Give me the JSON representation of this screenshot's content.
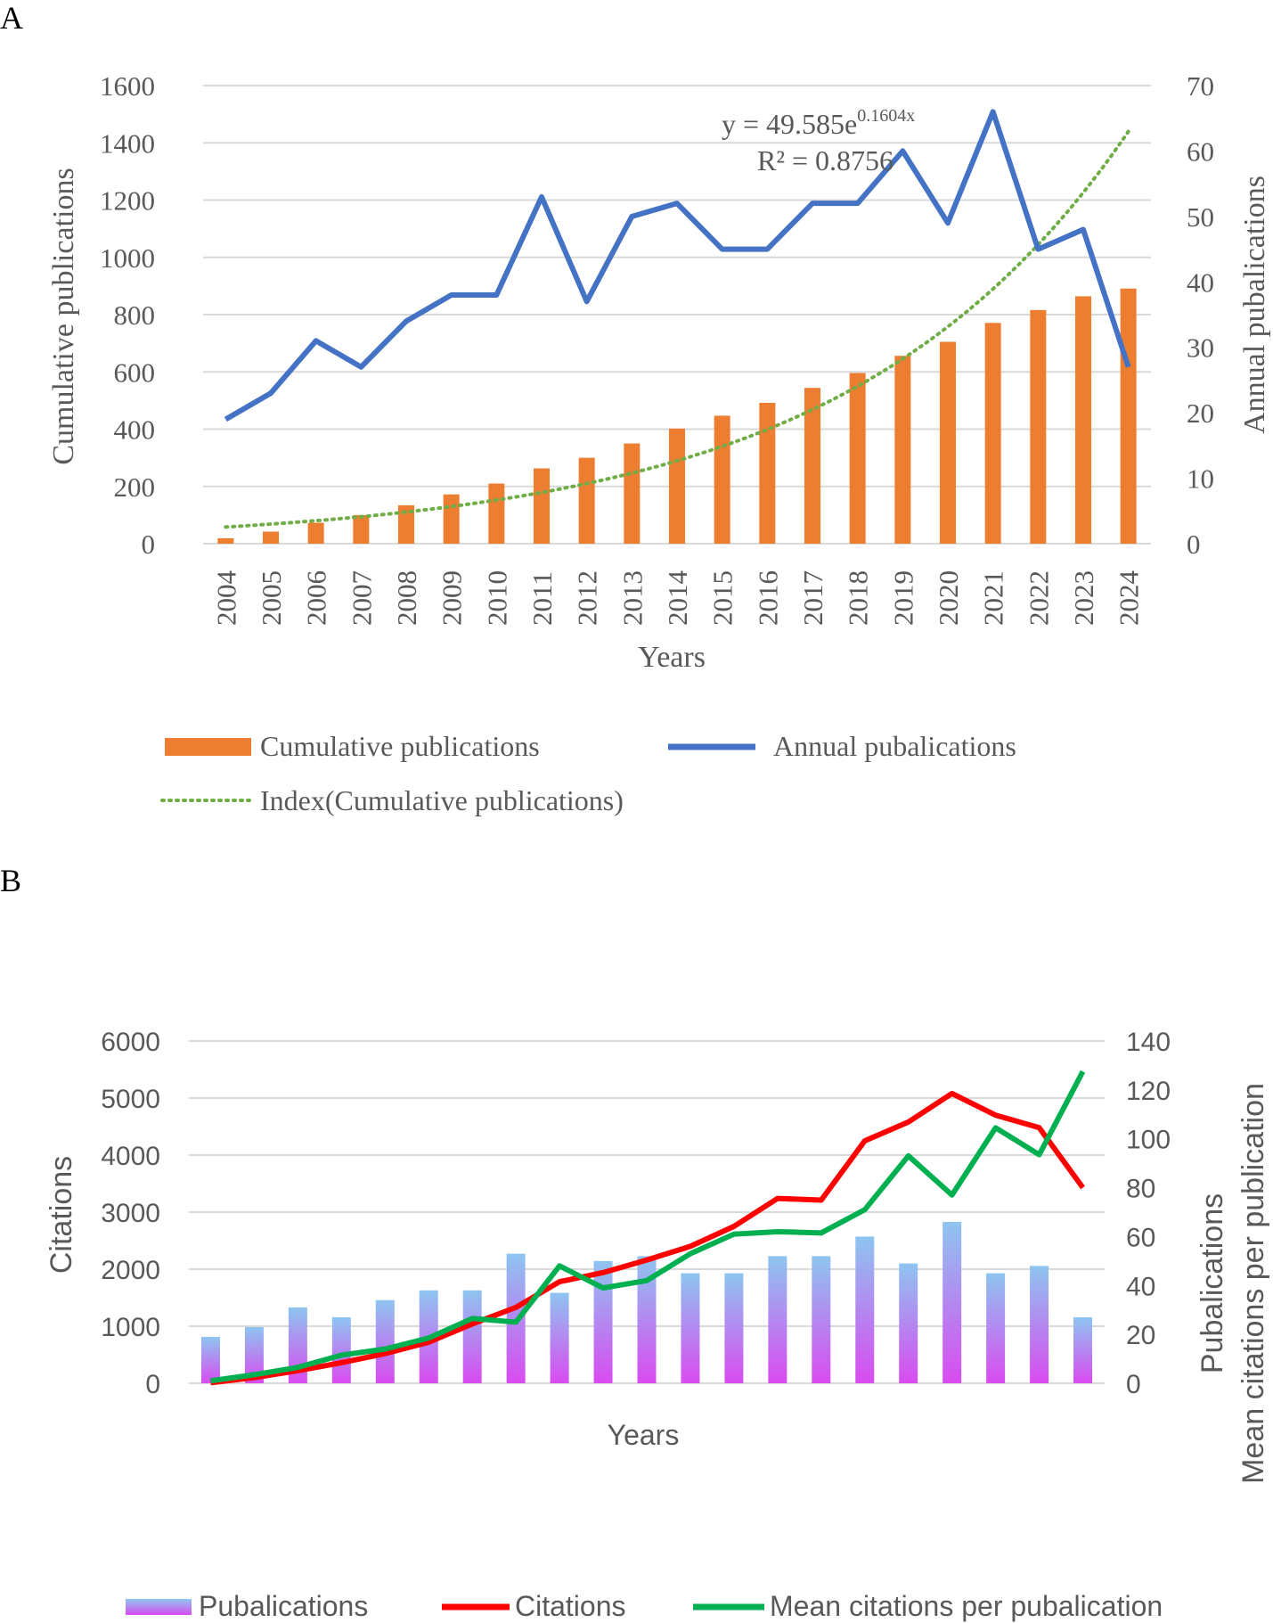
{
  "colors": {
    "cumulative_bar": "#ED7D31",
    "annual_line": "#4472C4",
    "trend": "#70AD47",
    "citations_line": "#FF0000",
    "mean_line": "#00B050",
    "pub_bar_top": "#8EC5F0",
    "pub_bar_bottom": "#D94BF0",
    "text": "#595959",
    "grid": "#D9D9D9"
  },
  "chart_data": [
    {
      "panel_label": "A",
      "type": "bar+line",
      "xlabel": "Years",
      "ylabel_left": "Cumulative publications",
      "ylabel_right": "Annual pubalications",
      "categories": [
        "2004",
        "2005",
        "2006",
        "2007",
        "2008",
        "2009",
        "2010",
        "2011",
        "2012",
        "2013",
        "2014",
        "2015",
        "2016",
        "2017",
        "2018",
        "2019",
        "2020",
        "2021",
        "2022",
        "2023",
        "2024"
      ],
      "ylim_left": [
        0,
        1600
      ],
      "yticks_left": [
        0,
        200,
        400,
        600,
        800,
        1000,
        1200,
        1400,
        1600
      ],
      "ylim_right": [
        0,
        70
      ],
      "yticks_right": [
        0,
        10,
        20,
        30,
        40,
        50,
        60,
        70
      ],
      "series": [
        {
          "name": "Cumulative publications",
          "type": "bar",
          "axis": "left",
          "values": [
            19,
            42,
            73,
            100,
            134,
            172,
            210,
            263,
            300,
            350,
            402,
            447,
            492,
            544,
            596,
            656,
            705,
            771,
            816,
            864,
            891
          ]
        },
        {
          "name": "Annual pubalications",
          "type": "line",
          "axis": "right",
          "values": [
            19,
            23,
            31,
            27,
            34,
            38,
            38,
            53,
            37,
            50,
            52,
            45,
            45,
            52,
            52,
            60,
            49,
            66,
            45,
            48,
            27
          ]
        },
        {
          "name": "Index(Cumulative publications)",
          "type": "trendline",
          "axis": "left",
          "equation": {
            "a": 49.585,
            "b": 0.1604
          }
        }
      ],
      "annotation": {
        "equation_prefix": "y = 49.585e",
        "equation_exponent": "0.1604x",
        "r2": "R² = 0.8756"
      },
      "legend": [
        "Cumulative publications",
        "Annual pubalications",
        "Index(Cumulative publications)"
      ],
      "legend_position": "bottom"
    },
    {
      "panel_label": "B",
      "type": "bar+line",
      "xlabel": "Years",
      "ylabel_left": "Citations",
      "ylabel_right_1": "Pubalications",
      "ylabel_right_2": "Mean citations per publication",
      "ylim_left": [
        0,
        6000
      ],
      "yticks_left": [
        0,
        1000,
        2000,
        3000,
        4000,
        5000,
        6000
      ],
      "ylim_right": [
        0,
        140
      ],
      "yticks_right": [
        0,
        20,
        40,
        60,
        80,
        100,
        120,
        140
      ],
      "series": [
        {
          "name": "Pubalications",
          "type": "bar",
          "axis": "right",
          "values": [
            19,
            23,
            31,
            27,
            34,
            38,
            38,
            53,
            37,
            50,
            52,
            45,
            45,
            52,
            52,
            60,
            49,
            66,
            45,
            48,
            27
          ]
        },
        {
          "name": "Citations",
          "type": "line",
          "axis": "left",
          "values": [
            10,
            100,
            220,
            360,
            520,
            720,
            1040,
            1330,
            1780,
            1940,
            2160,
            2400,
            2750,
            3240,
            3210,
            4250,
            4580,
            5080,
            4700,
            4480,
            3430
          ]
        },
        {
          "name": "Mean citations per pubalication",
          "type": "line",
          "axis": "right",
          "values": [
            1,
            3.5,
            6.5,
            11.5,
            14,
            18.5,
            26.5,
            25,
            48,
            39,
            42,
            53,
            61,
            62,
            61.5,
            71,
            93,
            77,
            104.5,
            93.5,
            127.5
          ]
        }
      ],
      "legend": [
        "Pubalications",
        "Citations",
        "Mean citations per pubalication"
      ],
      "legend_position": "bottom"
    }
  ]
}
